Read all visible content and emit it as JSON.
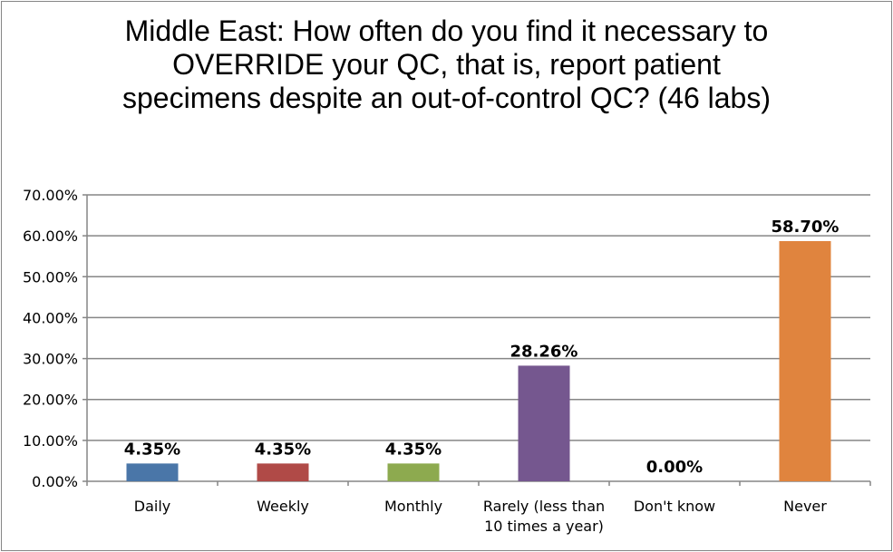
{
  "chart_data": {
    "type": "bar",
    "title": "Middle East: How often do you find it necessary to OVERRIDE your QC, that is, report patient specimens despite an out-of-control QC? (46 labs)",
    "categories": [
      [
        "Daily"
      ],
      [
        "Weekly"
      ],
      [
        "Monthly"
      ],
      [
        "Rarely (less than",
        "10 times a year)"
      ],
      [
        "Don't know"
      ],
      [
        "Never"
      ]
    ],
    "values": [
      4.35,
      4.35,
      4.35,
      28.26,
      0.0,
      58.7
    ],
    "data_labels": [
      "4.35%",
      "4.35%",
      "4.35%",
      "28.26%",
      "0.00%",
      "58.70%"
    ],
    "colors": [
      "#4A76A8",
      "#B04A47",
      "#8DAA4F",
      "#75578F",
      "#4BACC6",
      "#E0843E"
    ],
    "ylim": [
      0,
      70
    ],
    "yticks": [
      "0.00%",
      "10.00%",
      "20.00%",
      "30.00%",
      "40.00%",
      "50.00%",
      "60.00%",
      "70.00%"
    ],
    "grid": true,
    "legend": "none"
  }
}
